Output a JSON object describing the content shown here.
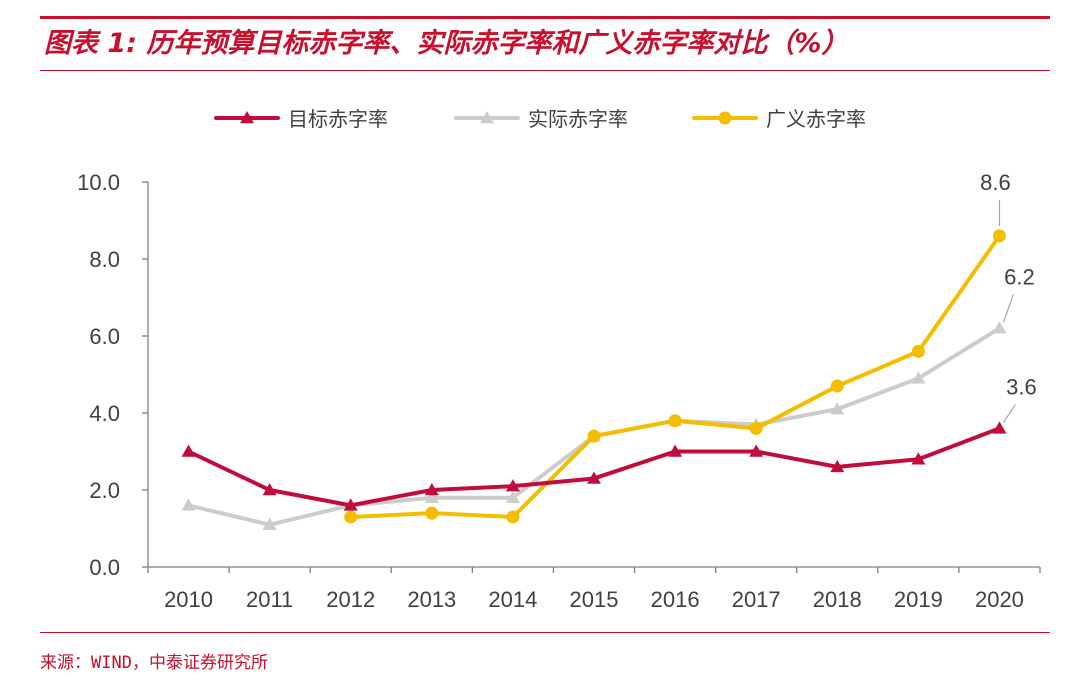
{
  "header": {
    "title": "图表 1: 历年预算目标赤字率、实际赤字率和广义赤字率对比（%）"
  },
  "footer": {
    "source": "来源：WIND，中泰证券研究所"
  },
  "colors": {
    "brand": "#c8102e",
    "target": "#c00d3d",
    "actual": "#cccccc",
    "broad": "#f5bd00"
  },
  "chart_data": {
    "type": "line",
    "title": "",
    "xlabel": "",
    "ylabel": "",
    "ylim": [
      0,
      10
    ],
    "yticks": [
      "0.0",
      "2.0",
      "4.0",
      "6.0",
      "8.0",
      "10.0"
    ],
    "categories": [
      "2010",
      "2011",
      "2012",
      "2013",
      "2014",
      "2015",
      "2016",
      "2017",
      "2018",
      "2019",
      "2020"
    ],
    "grid": false,
    "legend": "top",
    "series": [
      {
        "name": "目标赤字率",
        "color": "#c00d3d",
        "marker": "triangle",
        "values": [
          3.0,
          2.0,
          1.6,
          2.0,
          2.1,
          2.3,
          3.0,
          3.0,
          2.6,
          2.8,
          3.6
        ]
      },
      {
        "name": "实际赤字率",
        "color": "#cccccc",
        "marker": "triangle",
        "values": [
          1.6,
          1.1,
          1.6,
          1.8,
          1.8,
          3.4,
          3.8,
          3.7,
          4.1,
          4.9,
          6.2
        ]
      },
      {
        "name": "广义赤字率",
        "color": "#f5bd00",
        "marker": "circle",
        "values": [
          null,
          null,
          1.3,
          1.4,
          1.3,
          3.4,
          3.8,
          3.6,
          4.7,
          5.6,
          8.6
        ]
      }
    ],
    "annotations": [
      {
        "series": "广义赤字率",
        "category": "2020",
        "value": 8.6,
        "text": "8.6"
      },
      {
        "series": "实际赤字率",
        "category": "2020",
        "value": 6.2,
        "text": "6.2"
      },
      {
        "series": "目标赤字率",
        "category": "2020",
        "value": 3.6,
        "text": "3.6"
      }
    ]
  }
}
